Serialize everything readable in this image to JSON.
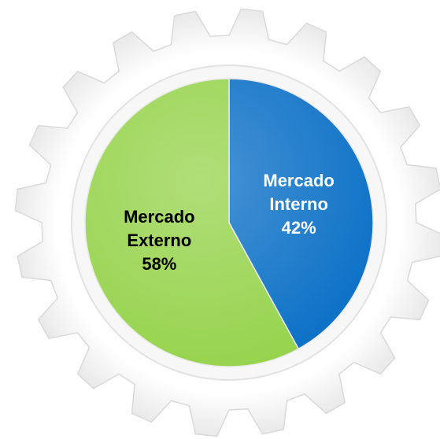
{
  "chart_data": {
    "type": "pie",
    "categories": [
      "Mercado Interno",
      "Mercado Externo"
    ],
    "values": [
      42,
      58
    ],
    "value_labels": [
      "42%",
      "58%"
    ],
    "colors": [
      "#0b70c6",
      "#96d34c"
    ],
    "label_colors": [
      "#ffffff",
      "#000000"
    ]
  }
}
